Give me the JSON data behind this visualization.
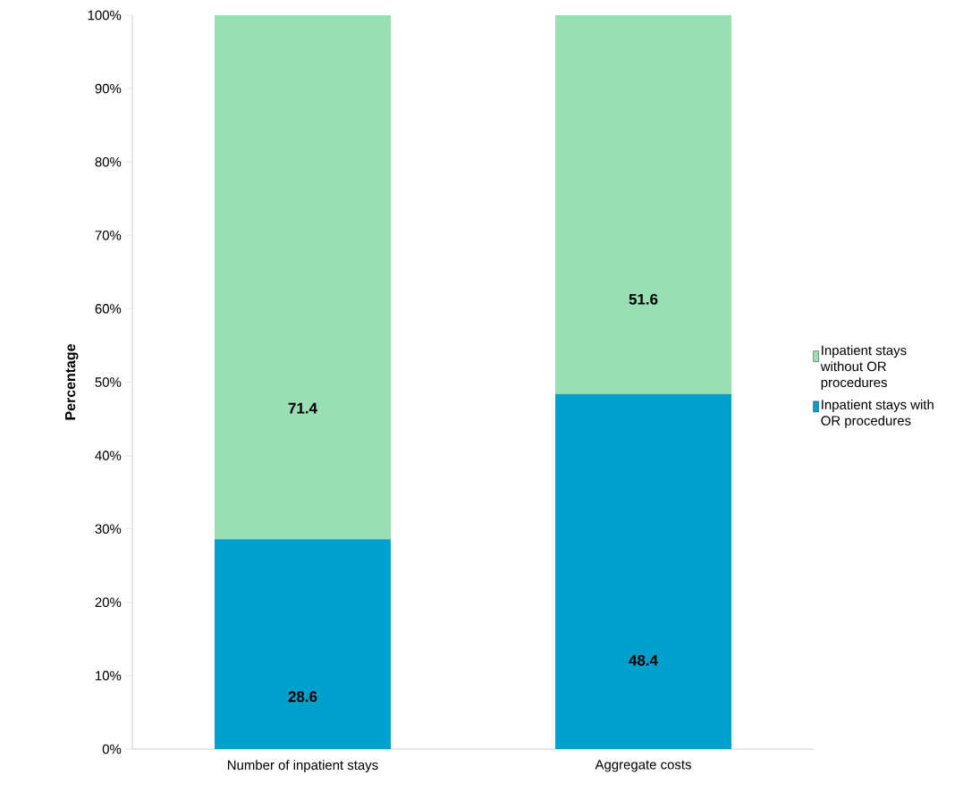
{
  "chart_data": {
    "type": "bar",
    "stacked": true,
    "ylabel": "Percentage",
    "categories": [
      "Number of inpatient stays",
      "Aggregate costs"
    ],
    "series": [
      {
        "name": "Inpatient stays with OR procedures",
        "color": "#00a0cc",
        "values": [
          28.6,
          48.4
        ]
      },
      {
        "name": "Inpatient stays without OR procedures",
        "color": "#9adfb4",
        "values": [
          71.4,
          51.6
        ]
      }
    ],
    "ylim": [
      0,
      100
    ],
    "yticks": [
      {
        "value": 0,
        "label": "0%"
      },
      {
        "value": 10,
        "label": "10%"
      },
      {
        "value": 20,
        "label": "20%"
      },
      {
        "value": 30,
        "label": "30%"
      },
      {
        "value": 40,
        "label": "40%"
      },
      {
        "value": 50,
        "label": "50%"
      },
      {
        "value": 60,
        "label": "60%"
      },
      {
        "value": 70,
        "label": "70%"
      },
      {
        "value": 80,
        "label": "80%"
      },
      {
        "value": 90,
        "label": "90%"
      },
      {
        "value": 100,
        "label": "100%"
      }
    ],
    "data_labels": true,
    "legend": "right",
    "grid": false
  }
}
